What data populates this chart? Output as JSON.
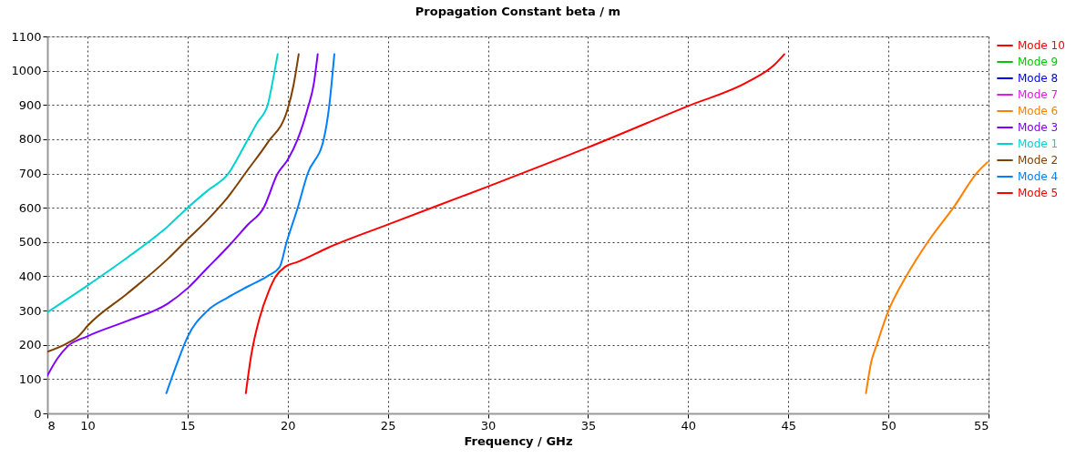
{
  "chart_data": {
    "type": "line",
    "title": "Propagation Constant beta / m",
    "xlabel": "Frequency / GHz",
    "xlim": [
      8,
      55
    ],
    "xticks": [
      8,
      10,
      15,
      20,
      25,
      30,
      35,
      40,
      45,
      50,
      55
    ],
    "ylim": [
      0,
      1100
    ],
    "yticks": [
      0,
      100,
      200,
      300,
      400,
      500,
      600,
      700,
      800,
      900,
      1000,
      1100
    ],
    "grid": true,
    "legend": "top right",
    "marker": "none",
    "line_style": "solid",
    "series": [
      {
        "name": "Mode 10",
        "color": "#ff0000"
      },
      {
        "name": "Mode 9",
        "color": "#00c800"
      },
      {
        "name": "Mode 8",
        "color": "#0000ff"
      },
      {
        "name": "Mode 7",
        "color": "#e619e6"
      },
      {
        "name": "Mode 6",
        "color": "#ff8000",
        "x": [
          48.88,
          49.15,
          49.42,
          50.0,
          50.9,
          52.0,
          53.3,
          54.42,
          54.95
        ],
        "values": [
          59,
          152,
          201,
          299,
          401,
          503,
          605,
          702,
          733
        ]
      },
      {
        "name": "Mode 3",
        "color": "#8000ff",
        "x": [
          8,
          8.5,
          9,
          10,
          12,
          14,
          15,
          16,
          17,
          18,
          18.8,
          19.5,
          20,
          20.5,
          21,
          21.3,
          21.5
        ],
        "values": [
          110,
          160,
          195,
          225,
          270,
          320,
          365,
          425,
          485,
          550,
          600,
          700,
          740,
          800,
          890,
          960,
          1048
        ]
      },
      {
        "name": "Mode 1",
        "color": "#00d2d2",
        "x": [
          8,
          10,
          12,
          14,
          15,
          16,
          17,
          18,
          18.5,
          19,
          19.35,
          19.5
        ],
        "values": [
          295,
          373,
          455,
          545,
          600,
          650,
          697,
          798,
          850,
          900,
          1000,
          1048
        ]
      },
      {
        "name": "Mode 2",
        "color": "#804000",
        "x": [
          8,
          9,
          9.6,
          10,
          12,
          14,
          15,
          16,
          17,
          18,
          19,
          20,
          20.3,
          20.55
        ],
        "values": [
          180,
          205,
          228,
          255,
          350,
          450,
          508,
          565,
          630,
          710,
          790,
          888,
          960,
          1048
        ]
      },
      {
        "name": "Mode 4",
        "color": "#0080ff",
        "x": [
          13.94,
          14.5,
          15,
          16,
          17,
          18,
          19,
          19.6,
          19.95,
          20.5,
          21.0,
          21.8,
          22.08,
          22.33
        ],
        "values": [
          59,
          150,
          223,
          300,
          338,
          370,
          401,
          427,
          500,
          600,
          700,
          800,
          900,
          1048
        ]
      },
      {
        "name": "Mode 5",
        "color": "#ff0000",
        "x": [
          17.91,
          18.18,
          18.59,
          19.05,
          19.4,
          19.88,
          20.5,
          22,
          25,
          30,
          35,
          40,
          43,
          44.3,
          44.8
        ],
        "values": [
          59,
          170,
          277,
          356,
          399,
          428,
          442,
          483,
          551,
          662,
          776,
          897,
          968,
          1017,
          1048
        ]
      }
    ]
  }
}
